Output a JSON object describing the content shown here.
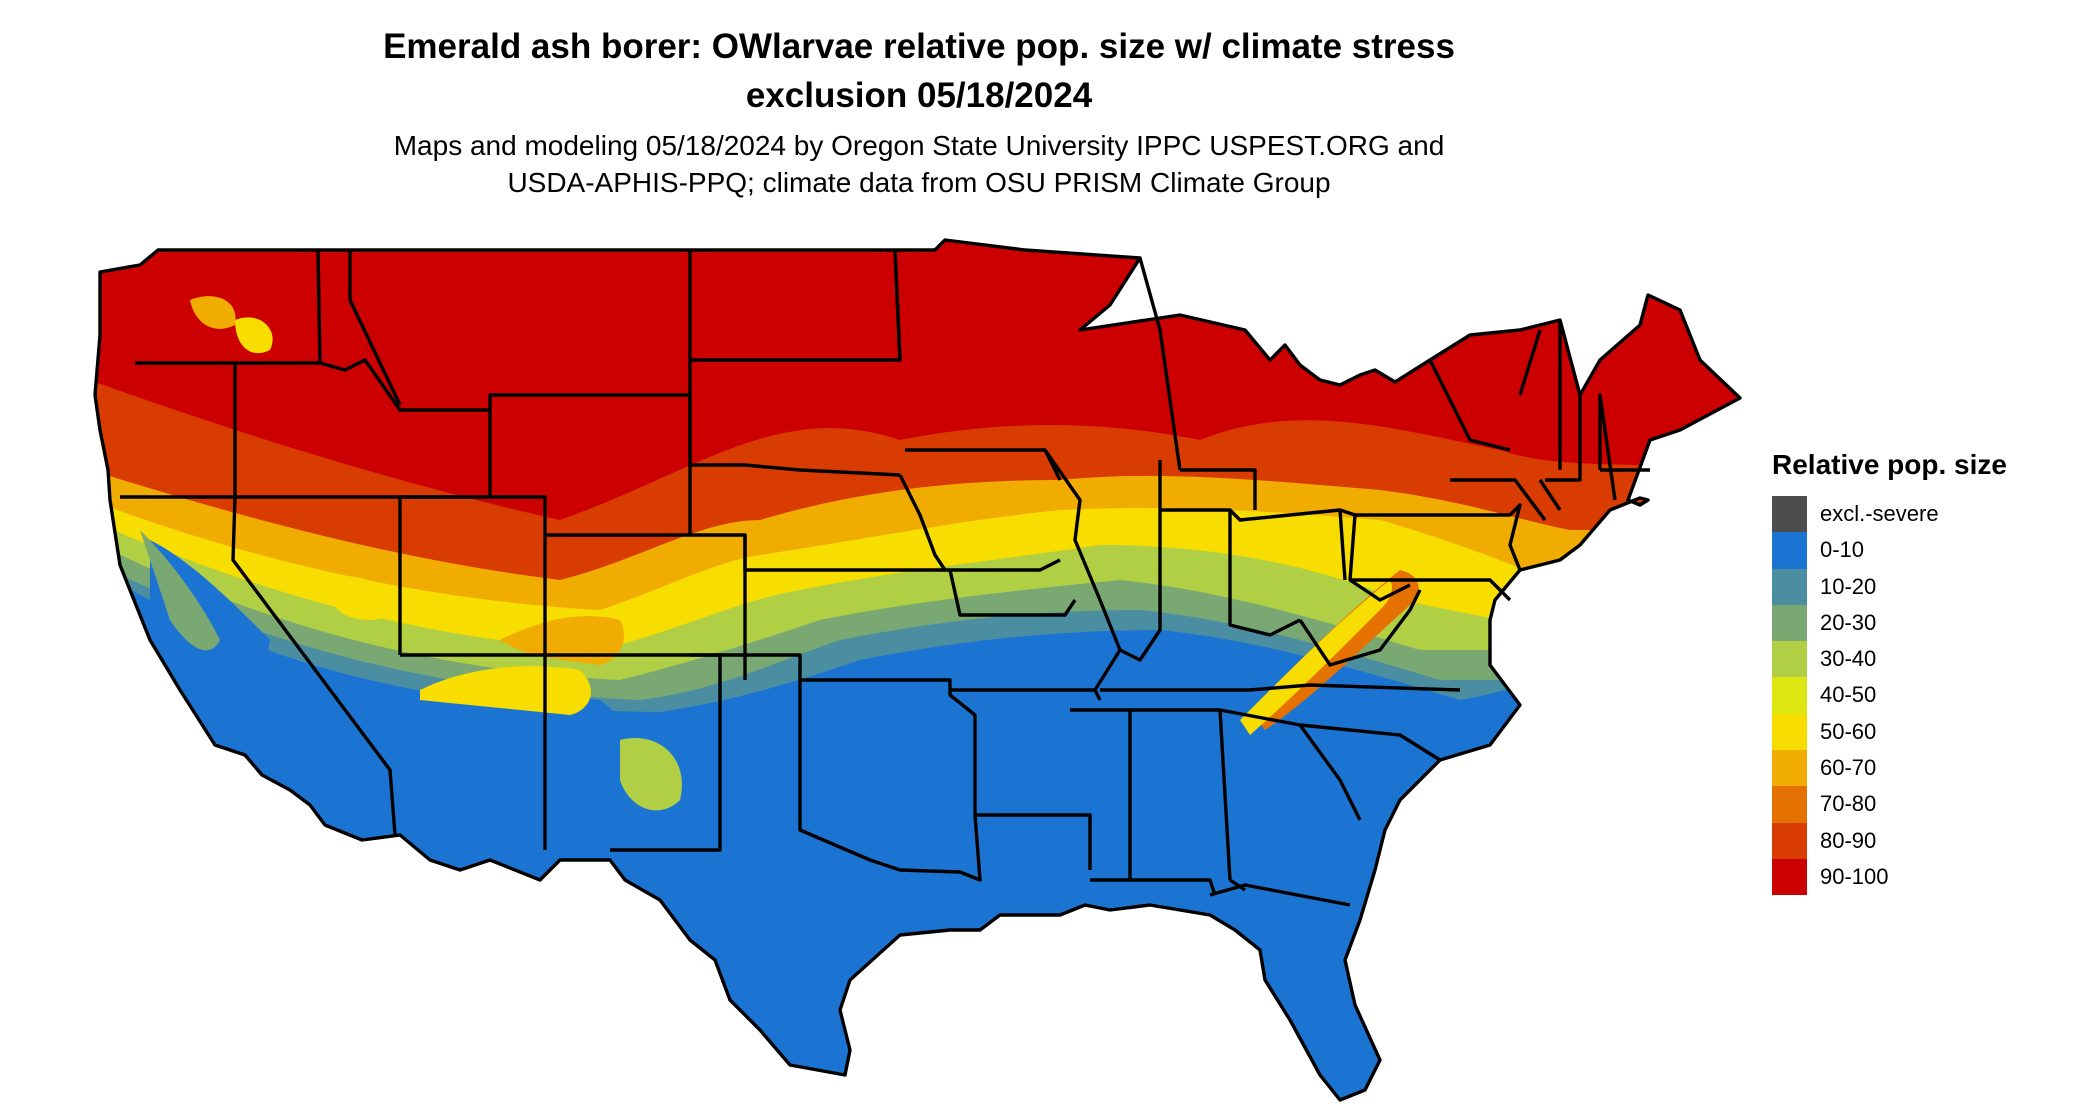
{
  "title": {
    "line1": "Emerald ash borer: OWlarvae relative pop. size w/ climate stress",
    "line2": "exclusion 05/18/2024"
  },
  "subtitle": {
    "line1": "Maps and modeling 05/18/2024 by Oregon State University IPPC USPEST.ORG and",
    "line2": "USDA-APHIS-PPQ; climate data from OSU PRISM Climate Group"
  },
  "legend": {
    "title": "Relative pop. size",
    "items": [
      {
        "label": "excl.-severe",
        "color": "#4d4d4d"
      },
      {
        "label": "0-10",
        "color": "#1c74d2"
      },
      {
        "label": "10-20",
        "color": "#4b8ea2"
      },
      {
        "label": "20-30",
        "color": "#7aa873"
      },
      {
        "label": "30-40",
        "color": "#b1cf45"
      },
      {
        "label": "40-50",
        "color": "#dfe712"
      },
      {
        "label": "50-60",
        "color": "#f7dd00"
      },
      {
        "label": "60-70",
        "color": "#f0ac00"
      },
      {
        "label": "70-80",
        "color": "#e57200"
      },
      {
        "label": "80-90",
        "color": "#d83c00"
      },
      {
        "label": "90-100",
        "color": "#cc0000"
      }
    ]
  },
  "map": {
    "region": "Contiguous United States",
    "zones": {
      "north": "90-100",
      "central_transition": "30-60",
      "south": "0-10"
    }
  }
}
